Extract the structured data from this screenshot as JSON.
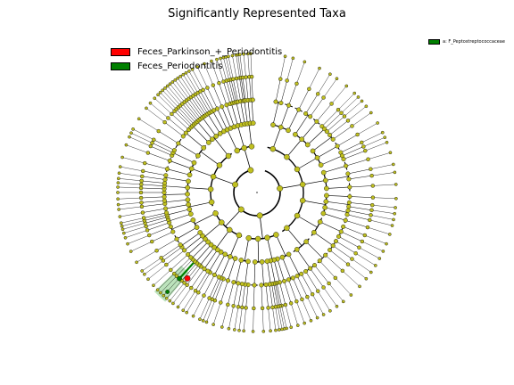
{
  "title": "Significantly Represented Taxa",
  "legend": {
    "items": [
      {
        "label": "Feces_Parkinson_+_Periodontitis",
        "color": "#ff0000"
      },
      {
        "label": "Feces_Periodontitis",
        "color": "#008000"
      }
    ]
  },
  "clade_legend": {
    "items": [
      {
        "label": "a: F_Peptostreptococcaceae",
        "color": "#008000"
      }
    ]
  },
  "cladogram": {
    "node_color": "#c0c020",
    "highlight_clade_color": "#008000",
    "highlight_clade_fill": "#90d090"
  }
}
